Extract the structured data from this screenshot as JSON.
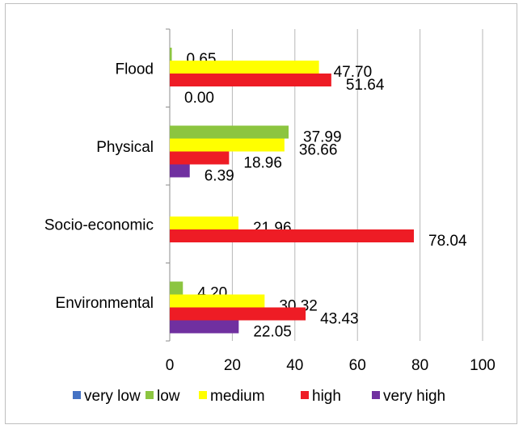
{
  "chart_data": {
    "type": "bar",
    "orientation": "horizontal",
    "categories": [
      "Flood",
      "Physical",
      "Socio-economic",
      "Environmental"
    ],
    "series": [
      {
        "name": "very low",
        "color": "#4472c4",
        "values": [
          null,
          null,
          null,
          null
        ],
        "labels": [
          "",
          "",
          "",
          ""
        ]
      },
      {
        "name": "low",
        "color": "#8cc540",
        "values": [
          0.65,
          37.99,
          null,
          4.2
        ],
        "labels": [
          "0.65",
          "37.99",
          "",
          "4.20"
        ]
      },
      {
        "name": "medium",
        "color": "#ffff00",
        "values": [
          47.7,
          36.66,
          21.96,
          30.32
        ],
        "labels": [
          "47.70",
          "36.66",
          "21.96",
          "30.32"
        ]
      },
      {
        "name": "high",
        "color": "#ee1c25",
        "values": [
          51.64,
          18.96,
          78.04,
          43.43
        ],
        "labels": [
          "51.64",
          "18.96",
          "78.04",
          "43.43"
        ]
      },
      {
        "name": "very high",
        "color": "#7030a0",
        "values": [
          0,
          6.39,
          null,
          22.05
        ],
        "labels": [
          "0.00",
          "6.39",
          "",
          "22.05"
        ]
      }
    ],
    "x_ticks": [
      "0",
      "20",
      "40",
      "60",
      "80",
      "100"
    ],
    "xlim": [
      0,
      100
    ],
    "grid": true,
    "legend_position": "bottom"
  }
}
